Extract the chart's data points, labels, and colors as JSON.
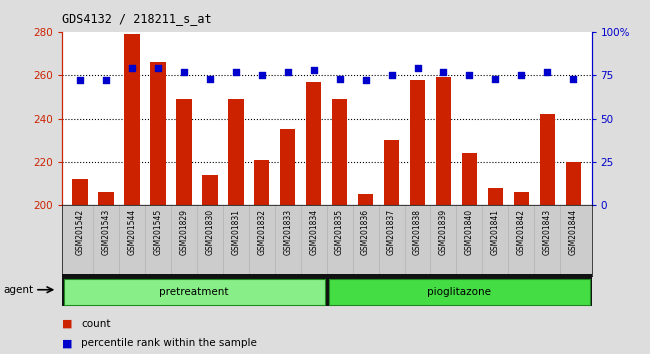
{
  "title": "GDS4132 / 218211_s_at",
  "categories": [
    "GSM201542",
    "GSM201543",
    "GSM201544",
    "GSM201545",
    "GSM201829",
    "GSM201830",
    "GSM201831",
    "GSM201832",
    "GSM201833",
    "GSM201834",
    "GSM201835",
    "GSM201836",
    "GSM201837",
    "GSM201838",
    "GSM201839",
    "GSM201840",
    "GSM201841",
    "GSM201842",
    "GSM201843",
    "GSM201844"
  ],
  "counts": [
    212,
    206,
    279,
    266,
    249,
    214,
    249,
    221,
    235,
    257,
    249,
    205,
    230,
    258,
    259,
    224,
    208,
    206,
    242,
    220
  ],
  "percentiles": [
    72,
    72,
    79,
    79,
    77,
    73,
    77,
    75,
    77,
    78,
    73,
    72,
    75,
    79,
    77,
    75,
    73,
    75,
    77,
    73
  ],
  "pretreatment_count": 10,
  "pioglitazone_count": 10,
  "ylim_left": [
    200,
    280
  ],
  "ylim_right": [
    0,
    100
  ],
  "yticks_left": [
    200,
    220,
    240,
    260,
    280
  ],
  "yticks_right": [
    0,
    25,
    50,
    75,
    100
  ],
  "ytick_labels_right": [
    "0",
    "25",
    "50",
    "75",
    "100%"
  ],
  "bar_color": "#cc2200",
  "dot_color": "#0000cc",
  "pretreatment_color": "#88ee88",
  "pioglitazone_color": "#44dd44",
  "agent_label": "agent",
  "pretreatment_label": "pretreatment",
  "pioglitazone_label": "pioglitazone",
  "legend_count_label": "count",
  "legend_percentile_label": "percentile rank within the sample",
  "fig_bg_color": "#dddddd",
  "plot_bg_color": "#ffffff",
  "xtick_bg_color": "#cccccc",
  "left_axis_color": "#cc2200",
  "right_axis_color": "#0000cc",
  "grid_color": [
    220,
    240,
    260
  ]
}
